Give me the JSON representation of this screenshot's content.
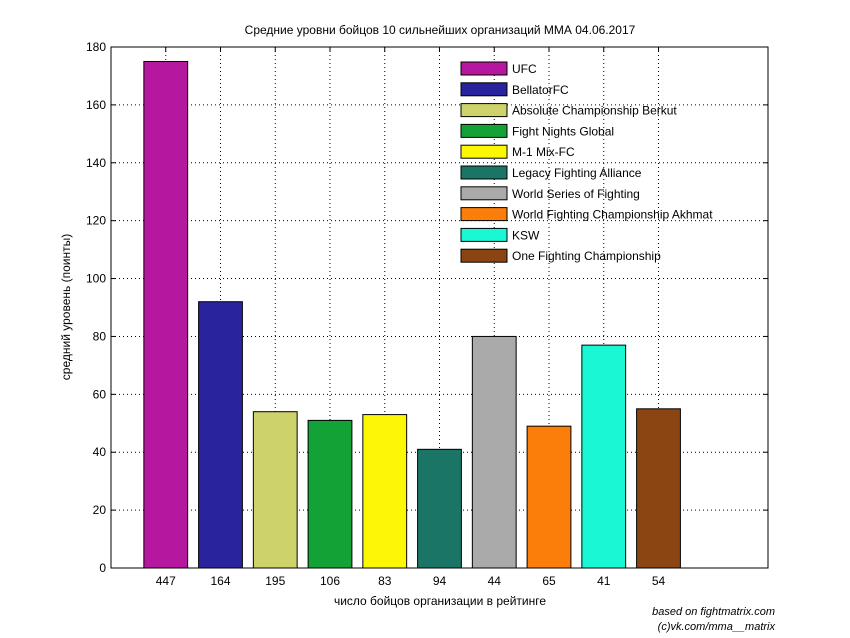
{
  "chart_data": {
    "type": "bar",
    "title": "Средние уровни бойцов 10 сильнейших организаций ММА 04.06.2017",
    "xlabel": "число бойцов организации в рейтинге",
    "ylabel": "средний уровень (поинты)",
    "ylim": [
      0,
      180
    ],
    "yticks": [
      0,
      20,
      40,
      60,
      80,
      100,
      120,
      140,
      160,
      180
    ],
    "grid": true,
    "legend": "top-right",
    "categories": [
      "447",
      "164",
      "195",
      "106",
      "83",
      "94",
      "44",
      "65",
      "41",
      "54"
    ],
    "series": [
      {
        "name": "UFC",
        "values": [
          175,
          null,
          null,
          null,
          null,
          null,
          null,
          null,
          null,
          null
        ],
        "color": "#b5179e"
      },
      {
        "name": "BellatorFC",
        "values": [
          null,
          92,
          null,
          null,
          null,
          null,
          null,
          null,
          null,
          null
        ],
        "color": "#2a239e"
      },
      {
        "name": "Absolute Championship Berkut",
        "values": [
          null,
          null,
          54,
          null,
          null,
          null,
          null,
          null,
          null,
          null
        ],
        "color": "#cdd26b"
      },
      {
        "name": "Fight Nights Global",
        "values": [
          null,
          null,
          null,
          51,
          null,
          null,
          null,
          null,
          null,
          null
        ],
        "color": "#12a235"
      },
      {
        "name": "M-1 Mix-FC",
        "values": [
          null,
          null,
          null,
          null,
          53,
          null,
          null,
          null,
          null,
          null
        ],
        "color": "#fbf705"
      },
      {
        "name": "Legacy Fighting Alliance",
        "values": [
          null,
          null,
          null,
          null,
          null,
          41,
          null,
          null,
          null,
          null
        ],
        "color": "#1a7566"
      },
      {
        "name": "World Series of Fighting",
        "values": [
          null,
          null,
          null,
          null,
          null,
          null,
          80,
          null,
          null,
          null
        ],
        "color": "#aaaaaa"
      },
      {
        "name": "World Fighting Championship Akhmat",
        "values": [
          null,
          null,
          null,
          null,
          null,
          null,
          null,
          49,
          null,
          null
        ],
        "color": "#fc7e0a"
      },
      {
        "name": "KSW",
        "values": [
          null,
          null,
          null,
          null,
          null,
          null,
          null,
          null,
          77,
          null
        ],
        "color": "#1af7d5"
      },
      {
        "name": "One Fighting Championship",
        "values": [
          null,
          null,
          null,
          null,
          null,
          null,
          null,
          null,
          null,
          55
        ],
        "color": "#8b4513"
      }
    ]
  },
  "credits": {
    "line1": "based on fightmatrix.com",
    "line2": "(c)vk.com/mma__matrix"
  }
}
